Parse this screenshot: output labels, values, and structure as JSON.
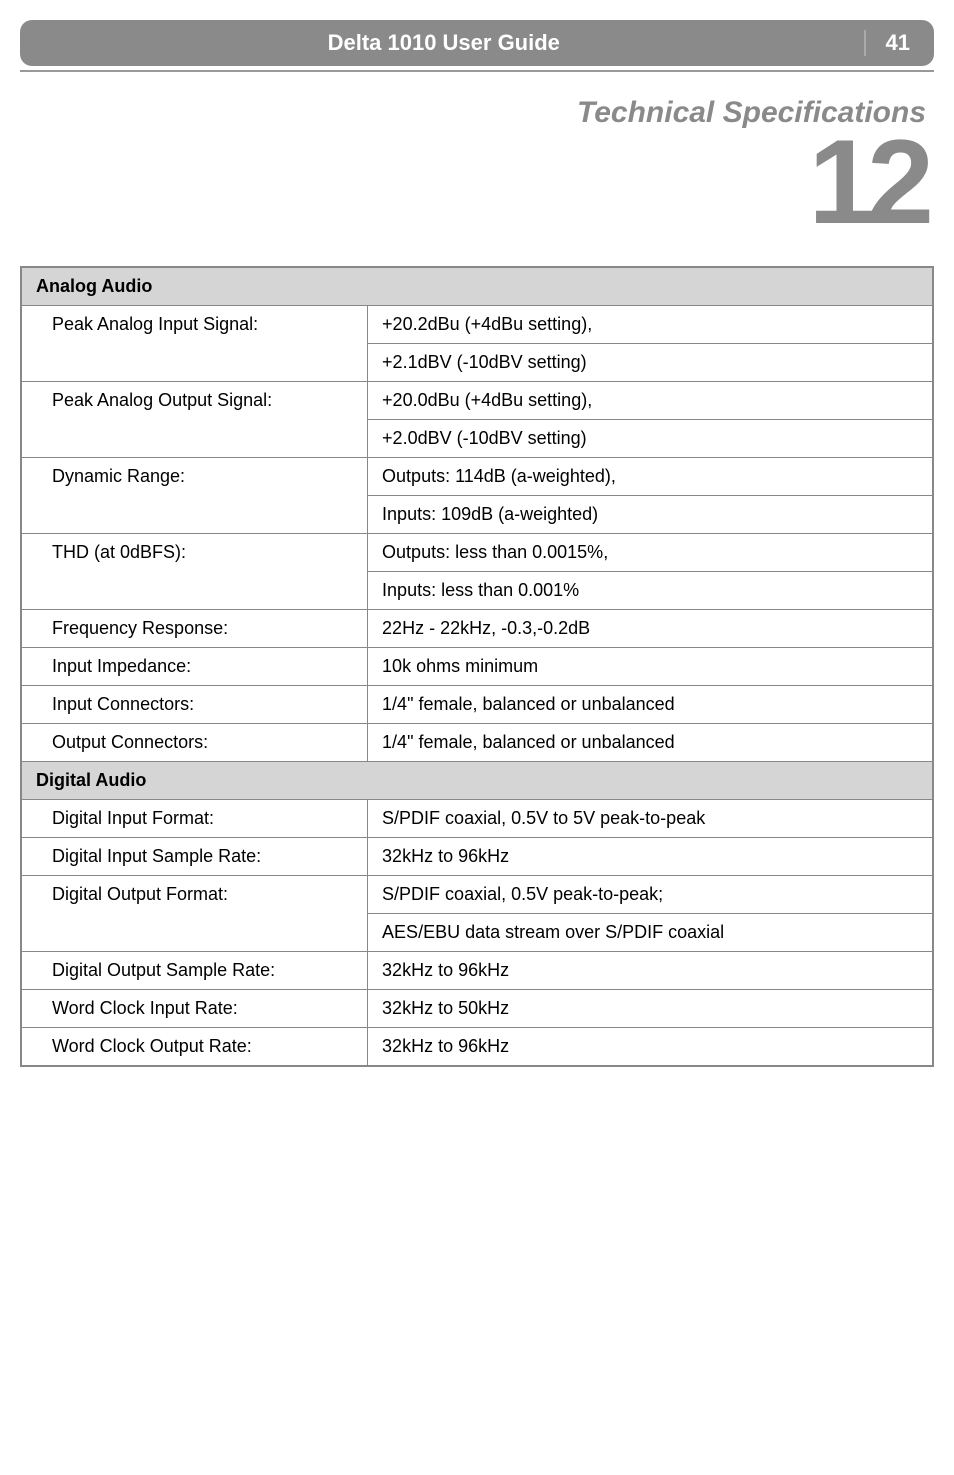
{
  "header": {
    "title": "Delta 1010 User Guide",
    "page": "41"
  },
  "section": {
    "title": "Technical Specifications",
    "number": "12"
  },
  "table": {
    "analog_header": "Analog Audio",
    "digital_header": "Digital Audio",
    "rows": {
      "peak_input_label": "Peak Analog Input Signal:",
      "peak_input_val1": "+20.2dBu (+4dBu setting),",
      "peak_input_val2": "+2.1dBV (-10dBV setting)",
      "peak_output_label": "Peak Analog Output Signal:",
      "peak_output_val1": "+20.0dBu (+4dBu setting),",
      "peak_output_val2": "+2.0dBV (-10dBV setting)",
      "dynamic_label": "Dynamic Range:",
      "dynamic_val1": "Outputs: 114dB (a-weighted),",
      "dynamic_val2": "Inputs: 109dB (a-weighted)",
      "thd_label": "THD (at 0dBFS):",
      "thd_val1": "Outputs: less than 0.0015%,",
      "thd_val2": "Inputs: less than 0.001%",
      "freq_label": "Frequency Response:",
      "freq_val": "22Hz - 22kHz, -0.3,-0.2dB",
      "imp_label": "Input Impedance:",
      "imp_val": "10k ohms minimum",
      "inconn_label": "Input Connectors:",
      "inconn_val": "1/4\" female, balanced or unbalanced",
      "outconn_label": "Output Connectors:",
      "outconn_val": "1/4\" female, balanced or unbalanced",
      "digin_label": "Digital Input Format:",
      "digin_val": "S/PDIF coaxial, 0.5V to 5V peak-to-peak",
      "diginrate_label": "Digital Input Sample Rate:",
      "diginrate_val": "32kHz to 96kHz",
      "digout_label": "Digital Output Format:",
      "digout_val1": "S/PDIF coaxial, 0.5V peak-to-peak;",
      "digout_val2": "AES/EBU data stream over S/PDIF coaxial",
      "digoutrate_label": "Digital Output Sample Rate:",
      "digoutrate_val": "32kHz to 96kHz",
      "wcin_label": "Word Clock Input Rate:",
      "wcin_val": "32kHz to 50kHz",
      "wcout_label": "Word Clock Output Rate:",
      "wcout_val": "32kHz to 96kHz"
    }
  }
}
